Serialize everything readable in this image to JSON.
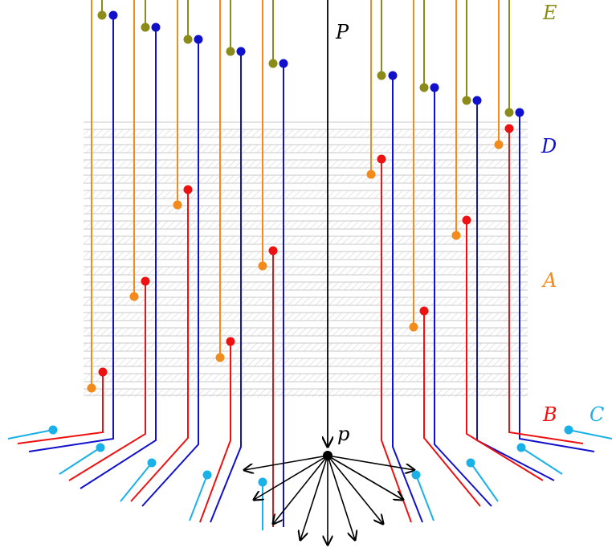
{
  "labels": {
    "P": "P",
    "p": "p",
    "E": "E",
    "D": "D",
    "A": "A",
    "B": "B",
    "C": "C"
  },
  "colors": {
    "P": "#000000",
    "p": "#000000",
    "E": "#8b8b1a",
    "D": "#1111cc",
    "A": "#f28a1c",
    "B": "#ee1111",
    "C": "#1ab0e8",
    "stripe": "#c8c8c8"
  }
}
